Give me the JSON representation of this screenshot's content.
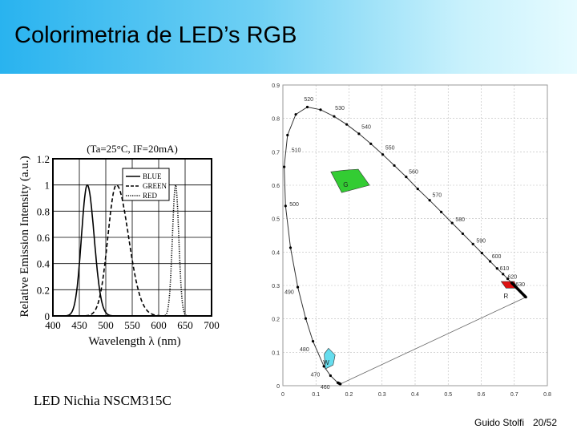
{
  "header": {
    "title": "Colorimetria de LED’s RGB"
  },
  "caption": "LED Nichia NSCM315C",
  "footer": {
    "author": "Guido Stolfi",
    "page": "20/52"
  },
  "colors": {
    "title_gradient_start": "#29b3ef",
    "title_gradient_end": "#e6fbff",
    "green_gamut": "#33cc33",
    "red_gamut": "#dd1111",
    "white_region": "#66ddee"
  },
  "chart_data": [
    {
      "type": "line",
      "annotation": "(Ta=25°C, IF=20mA)",
      "xlabel": "Wavelength λ (nm)",
      "ylabel": "Relative Emission Intensity (a.u.)",
      "xlim": [
        400,
        700
      ],
      "ylim": [
        0,
        1.2
      ],
      "xticks": [
        "400",
        "450",
        "500",
        "550",
        "600",
        "650",
        "700"
      ],
      "yticks": [
        "0",
        "0.2",
        "0.4",
        "0.6",
        "0.8",
        "1",
        "1.2"
      ],
      "legend_position": "top-right",
      "series": [
        {
          "name": "BLUE",
          "style": "solid",
          "peak": 465,
          "width_left": 11,
          "width_right": 13
        },
        {
          "name": "GREEN",
          "style": "dashed",
          "peak": 520,
          "width_left": 16,
          "width_right": 23
        },
        {
          "name": "RED",
          "style": "dotted",
          "peak": 632,
          "width_left": 6,
          "width_right": 6
        }
      ]
    },
    {
      "type": "scatter",
      "xlim": [
        0,
        0.8
      ],
      "ylim": [
        0,
        0.9
      ],
      "xticks": [
        "0",
        "0.1",
        "0.2",
        "0.3",
        "0.4",
        "0.5",
        "0.6",
        "0.7",
        "0.8"
      ],
      "yticks": [
        "0",
        "0.1",
        "0.2",
        "0.3",
        "0.4",
        "0.5",
        "0.6",
        "0.7",
        "0.8",
        "0.9"
      ],
      "spectral_locus": [
        [
          0.174,
          0.005
        ],
        [
          0.166,
          0.009
        ],
        [
          0.144,
          0.03
        ],
        [
          0.124,
          0.058
        ],
        [
          0.091,
          0.133
        ],
        [
          0.069,
          0.201
        ],
        [
          0.045,
          0.295
        ],
        [
          0.023,
          0.413
        ],
        [
          0.008,
          0.538
        ],
        [
          0.004,
          0.655
        ],
        [
          0.014,
          0.75
        ],
        [
          0.039,
          0.812
        ],
        [
          0.074,
          0.834
        ],
        [
          0.114,
          0.826
        ],
        [
          0.155,
          0.806
        ],
        [
          0.193,
          0.782
        ],
        [
          0.23,
          0.754
        ],
        [
          0.266,
          0.724
        ],
        [
          0.302,
          0.692
        ],
        [
          0.337,
          0.659
        ],
        [
          0.373,
          0.625
        ],
        [
          0.408,
          0.589
        ],
        [
          0.444,
          0.555
        ],
        [
          0.479,
          0.52
        ],
        [
          0.512,
          0.487
        ],
        [
          0.544,
          0.455
        ],
        [
          0.575,
          0.424
        ],
        [
          0.602,
          0.397
        ],
        [
          0.627,
          0.372
        ],
        [
          0.648,
          0.351
        ],
        [
          0.666,
          0.334
        ],
        [
          0.68,
          0.32
        ],
        [
          0.692,
          0.308
        ],
        [
          0.735,
          0.265
        ]
      ],
      "wavelength_labels": [
        {
          "text": "520",
          "at": [
            0.074,
            0.834
          ],
          "dx": -0.01,
          "dy": 0.018
        },
        {
          "text": "530",
          "at": [
            0.155,
            0.806
          ],
          "dx": 0.003,
          "dy": 0.02
        },
        {
          "text": "540",
          "at": [
            0.23,
            0.754
          ],
          "dx": 0.008,
          "dy": 0.015
        },
        {
          "text": "550",
          "at": [
            0.302,
            0.692
          ],
          "dx": 0.008,
          "dy": 0.015
        },
        {
          "text": "560",
          "at": [
            0.373,
            0.625
          ],
          "dx": 0.008,
          "dy": 0.01
        },
        {
          "text": "570",
          "at": [
            0.444,
            0.555
          ],
          "dx": 0.008,
          "dy": 0.01
        },
        {
          "text": "580",
          "at": [
            0.512,
            0.487
          ],
          "dx": 0.01,
          "dy": 0.005
        },
        {
          "text": "590",
          "at": [
            0.575,
            0.424
          ],
          "dx": 0.01,
          "dy": 0.005
        },
        {
          "text": "600",
          "at": [
            0.627,
            0.372
          ],
          "dx": 0.005,
          "dy": 0.01
        },
        {
          "text": "610",
          "at": [
            0.666,
            0.334
          ],
          "dx": -0.01,
          "dy": 0.012
        },
        {
          "text": "620",
          "at": [
            0.68,
            0.32
          ],
          "dx": 0.0,
          "dy": 0.0
        },
        {
          "text": "630",
          "at": [
            0.692,
            0.308
          ],
          "dx": 0.012,
          "dy": -0.01
        },
        {
          "text": "510",
          "at": [
            0.014,
            0.75
          ],
          "dx": 0.012,
          "dy": -0.05
        },
        {
          "text": "500",
          "at": [
            0.008,
            0.538
          ],
          "dx": 0.012,
          "dy": 0.0
        },
        {
          "text": "490",
          "at": [
            0.045,
            0.295
          ],
          "dx": -0.04,
          "dy": -0.02
        },
        {
          "text": "480",
          "at": [
            0.091,
            0.133
          ],
          "dx": -0.04,
          "dy": -0.03
        },
        {
          "text": "470",
          "at": [
            0.124,
            0.058
          ],
          "dx": -0.04,
          "dy": -0.03
        },
        {
          "text": "460",
          "at": [
            0.144,
            0.03
          ],
          "dx": -0.03,
          "dy": -0.04
        }
      ],
      "regions": [
        {
          "label": "G",
          "color": "#33cc33",
          "points": [
            [
              0.145,
              0.64
            ],
            [
              0.185,
              0.645
            ],
            [
              0.228,
              0.648
            ],
            [
              0.262,
              0.6
            ],
            [
              0.178,
              0.578
            ]
          ],
          "label_at": [
            0.19,
            0.595
          ]
        },
        {
          "label": "R",
          "color": "#dd1111",
          "points": [
            [
              0.66,
              0.312
            ],
            [
              0.7,
              0.312
            ],
            [
              0.708,
              0.292
            ],
            [
              0.675,
              0.292
            ]
          ],
          "label_at": [
            0.675,
            0.262
          ]
        },
        {
          "label": "W",
          "color": "#66ddee",
          "points": [
            [
              0.128,
              0.05
            ],
            [
              0.152,
              0.062
            ],
            [
              0.158,
              0.092
            ],
            [
              0.138,
              0.112
            ],
            [
              0.125,
              0.095
            ]
          ],
          "label_at": [
            0.131,
            0.062
          ]
        }
      ]
    }
  ]
}
